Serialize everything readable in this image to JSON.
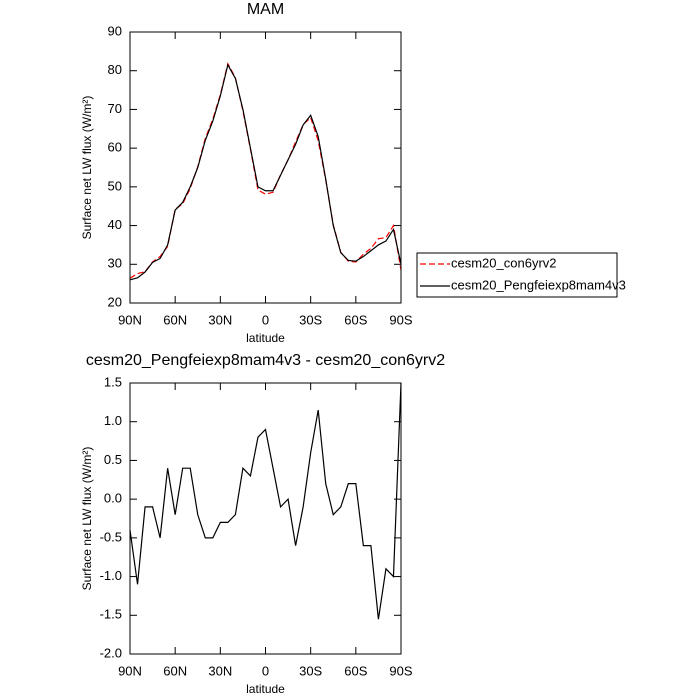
{
  "chart_data": [
    {
      "type": "line",
      "title": "MAM",
      "xlabel": "latitude",
      "ylabel": "Surface net LW flux (W/m²)",
      "x": [
        90,
        85,
        80,
        75,
        70,
        65,
        60,
        55,
        50,
        45,
        40,
        35,
        30,
        25,
        20,
        15,
        10,
        5,
        0,
        -5,
        -10,
        -15,
        -20,
        -25,
        -30,
        -35,
        -40,
        -45,
        -50,
        -55,
        -60,
        -65,
        -70,
        -75,
        -80,
        -85,
        -90
      ],
      "xlim": [
        90,
        -90
      ],
      "xticks": [
        {
          "value": 90,
          "label": "90N"
        },
        {
          "value": 60,
          "label": "60N"
        },
        {
          "value": 30,
          "label": "30N"
        },
        0,
        {
          "value": -30,
          "label": "30S"
        },
        {
          "value": -60,
          "label": "60S"
        },
        {
          "value": -90,
          "label": "90S"
        }
      ],
      "ylim": [
        20,
        90
      ],
      "yticks": [
        20,
        30,
        40,
        50,
        60,
        70,
        80,
        90
      ],
      "series": [
        {
          "name": "cesm20_con6yrv2",
          "color": "#ff0000",
          "dashed": true,
          "values": [
            26.4,
            27.6,
            28.1,
            30.6,
            32,
            34.6,
            44.2,
            45.6,
            49.6,
            55.2,
            62.5,
            67.5,
            73.8,
            81.8,
            78.2,
            69.6,
            59.7,
            49.2,
            48.1,
            48.6,
            53.1,
            57,
            61.6,
            66.1,
            67.9,
            61.9,
            51.8,
            40.2,
            33.1,
            30.8,
            30.6,
            32.6,
            34.1,
            36.6,
            36.9,
            40,
            28.5
          ]
        },
        {
          "name": "cesm20_Pengfeiexp8mam4v3",
          "color": "#000000",
          "dashed": false,
          "values": [
            26,
            26.5,
            28,
            30.5,
            31.5,
            35,
            44,
            46,
            50,
            55,
            62,
            67,
            73.5,
            81.5,
            78,
            70,
            60,
            50,
            49,
            49,
            53,
            57,
            61,
            66,
            68.5,
            63,
            52,
            40,
            33,
            31,
            30.8,
            32,
            33.5,
            35,
            36,
            39,
            30
          ]
        }
      ]
    },
    {
      "type": "line",
      "title": "cesm20_Pengfeiexp8mam4v3 - cesm20_con6yrv2",
      "xlabel": "latitude",
      "ylabel": "Surface net LW flux (W/m²)",
      "x": [
        90,
        85,
        80,
        75,
        70,
        65,
        60,
        55,
        50,
        45,
        40,
        35,
        30,
        25,
        20,
        15,
        10,
        5,
        0,
        -5,
        -10,
        -15,
        -20,
        -25,
        -30,
        -35,
        -40,
        -45,
        -50,
        -55,
        -60,
        -65,
        -70,
        -75,
        -80,
        -85,
        -90
      ],
      "xlim": [
        90,
        -90
      ],
      "xticks": [
        {
          "value": 90,
          "label": "90N"
        },
        {
          "value": 60,
          "label": "60N"
        },
        {
          "value": 30,
          "label": "30N"
        },
        0,
        {
          "value": -30,
          "label": "30S"
        },
        {
          "value": -60,
          "label": "60S"
        },
        {
          "value": -90,
          "label": "90S"
        }
      ],
      "ylim": [
        -2,
        1.5
      ],
      "yticks": [
        {
          "value": -2,
          "label": "-2.0"
        },
        -1.5,
        {
          "value": -1,
          "label": "-1.0"
        },
        -0.5,
        {
          "value": 0,
          "label": "0.0"
        },
        0.5,
        {
          "value": 1,
          "label": "1.0"
        },
        1.5
      ],
      "color": "#000000",
      "values": [
        -0.4,
        -1.1,
        -0.1,
        -0.1,
        -0.5,
        0.4,
        -0.2,
        0.4,
        0.4,
        -0.2,
        -0.5,
        -0.5,
        -0.3,
        -0.3,
        -0.2,
        0.4,
        0.3,
        0.8,
        0.9,
        0.4,
        -0.1,
        0,
        -0.6,
        -0.1,
        0.6,
        1.15,
        0.2,
        -0.2,
        -0.1,
        0.2,
        0.2,
        -0.6,
        -0.6,
        -1.55,
        -0.9,
        -1,
        1.5
      ]
    }
  ]
}
